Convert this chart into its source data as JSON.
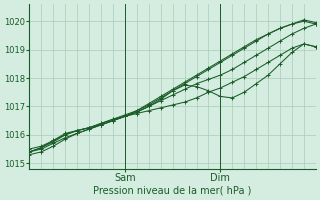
{
  "bg_color": "#d4ede0",
  "grid_color": "#a8cdb8",
  "line_color": "#1a5c28",
  "xlabel": "Pression niveau de la mer( hPa )",
  "xlabel_color": "#1a5c28",
  "tick_color": "#1a5c28",
  "ylim": [
    1014.8,
    1020.6
  ],
  "yticks": [
    1015,
    1016,
    1017,
    1018,
    1019,
    1020
  ],
  "xlim": [
    0,
    72
  ],
  "sam_x": 24,
  "dim_x": 48,
  "series": [
    {
      "points": [
        [
          0,
          1015.3
        ],
        [
          3,
          1015.4
        ],
        [
          6,
          1015.6
        ],
        [
          9,
          1015.85
        ],
        [
          12,
          1016.05
        ],
        [
          15,
          1016.2
        ],
        [
          18,
          1016.35
        ],
        [
          21,
          1016.5
        ],
        [
          24,
          1016.65
        ],
        [
          27,
          1016.85
        ],
        [
          30,
          1017.1
        ],
        [
          33,
          1017.35
        ],
        [
          36,
          1017.6
        ],
        [
          39,
          1017.85
        ],
        [
          42,
          1018.1
        ],
        [
          45,
          1018.35
        ],
        [
          48,
          1018.6
        ],
        [
          51,
          1018.85
        ],
        [
          54,
          1019.1
        ],
        [
          57,
          1019.35
        ],
        [
          60,
          1019.55
        ],
        [
          63,
          1019.75
        ],
        [
          66,
          1019.9
        ],
        [
          69,
          1020.0
        ],
        [
          72,
          1019.9
        ]
      ]
    },
    {
      "points": [
        [
          0,
          1015.4
        ],
        [
          3,
          1015.5
        ],
        [
          6,
          1015.7
        ],
        [
          9,
          1015.9
        ],
        [
          12,
          1016.05
        ],
        [
          15,
          1016.2
        ],
        [
          18,
          1016.35
        ],
        [
          21,
          1016.5
        ],
        [
          24,
          1016.65
        ],
        [
          27,
          1016.8
        ],
        [
          30,
          1017.0
        ],
        [
          33,
          1017.2
        ],
        [
          36,
          1017.4
        ],
        [
          39,
          1017.6
        ],
        [
          42,
          1017.8
        ],
        [
          45,
          1017.95
        ],
        [
          48,
          1018.1
        ],
        [
          51,
          1018.3
        ],
        [
          54,
          1018.55
        ],
        [
          57,
          1018.8
        ],
        [
          60,
          1019.05
        ],
        [
          63,
          1019.3
        ],
        [
          66,
          1019.55
        ],
        [
          69,
          1019.75
        ],
        [
          72,
          1019.9
        ]
      ]
    },
    {
      "points": [
        [
          0,
          1015.4
        ],
        [
          3,
          1015.55
        ],
        [
          6,
          1015.75
        ],
        [
          9,
          1016.0
        ],
        [
          12,
          1016.15
        ],
        [
          15,
          1016.25
        ],
        [
          18,
          1016.35
        ],
        [
          21,
          1016.5
        ],
        [
          24,
          1016.65
        ],
        [
          27,
          1016.75
        ],
        [
          30,
          1016.85
        ],
        [
          33,
          1016.95
        ],
        [
          36,
          1017.05
        ],
        [
          39,
          1017.15
        ],
        [
          42,
          1017.3
        ],
        [
          45,
          1017.5
        ],
        [
          48,
          1017.65
        ],
        [
          51,
          1017.85
        ],
        [
          54,
          1018.05
        ],
        [
          57,
          1018.3
        ],
        [
          60,
          1018.55
        ],
        [
          63,
          1018.8
        ],
        [
          66,
          1019.05
        ],
        [
          69,
          1019.2
        ],
        [
          72,
          1019.1
        ]
      ]
    },
    {
      "points": [
        [
          0,
          1015.5
        ],
        [
          3,
          1015.6
        ],
        [
          6,
          1015.8
        ],
        [
          9,
          1016.05
        ],
        [
          12,
          1016.15
        ],
        [
          15,
          1016.25
        ],
        [
          18,
          1016.4
        ],
        [
          21,
          1016.55
        ],
        [
          24,
          1016.7
        ],
        [
          27,
          1016.85
        ],
        [
          30,
          1017.05
        ],
        [
          33,
          1017.3
        ],
        [
          36,
          1017.55
        ],
        [
          39,
          1017.75
        ],
        [
          42,
          1017.7
        ],
        [
          45,
          1017.55
        ],
        [
          48,
          1017.35
        ],
        [
          51,
          1017.3
        ],
        [
          54,
          1017.5
        ],
        [
          57,
          1017.8
        ],
        [
          60,
          1018.1
        ],
        [
          63,
          1018.5
        ],
        [
          66,
          1018.9
        ],
        [
          69,
          1019.2
        ],
        [
          72,
          1019.1
        ]
      ]
    },
    {
      "points": [
        [
          0,
          1015.4
        ],
        [
          3,
          1015.55
        ],
        [
          6,
          1015.8
        ],
        [
          9,
          1016.0
        ],
        [
          12,
          1016.15
        ],
        [
          15,
          1016.25
        ],
        [
          18,
          1016.4
        ],
        [
          21,
          1016.55
        ],
        [
          24,
          1016.65
        ],
        [
          27,
          1016.8
        ],
        [
          30,
          1017.0
        ],
        [
          33,
          1017.25
        ],
        [
          36,
          1017.55
        ],
        [
          39,
          1017.8
        ],
        [
          42,
          1018.05
        ],
        [
          45,
          1018.3
        ],
        [
          48,
          1018.55
        ],
        [
          51,
          1018.8
        ],
        [
          54,
          1019.05
        ],
        [
          57,
          1019.3
        ],
        [
          60,
          1019.55
        ],
        [
          63,
          1019.75
        ],
        [
          66,
          1019.9
        ],
        [
          69,
          1020.05
        ],
        [
          72,
          1019.95
        ]
      ]
    }
  ]
}
